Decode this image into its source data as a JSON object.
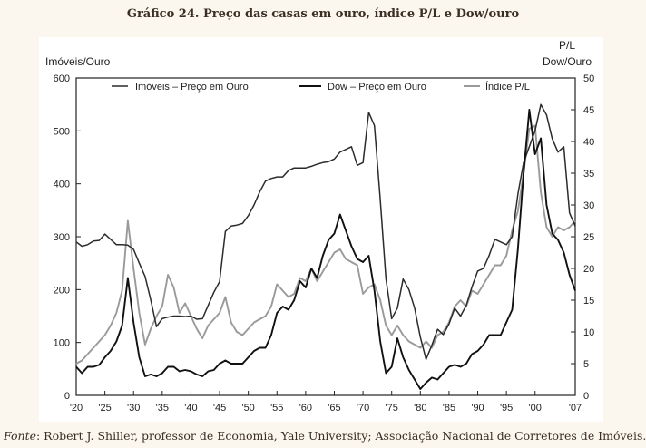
{
  "title": "Gráfico 24. Preço das casas em ouro, índice P/L e Dow/ouro",
  "source_label": "Fonte",
  "source_text": ": Robert J. Shiller, professor de Economia, Yale University; Associação Nacional de Corretores de Imóveis.",
  "chart_data": {
    "type": "line",
    "ylabel_left": "Imóveis/Ouro",
    "ylabel_right_line1": "P/L",
    "ylabel_right_line2": "Dow/Ouro",
    "xlim": [
      1920,
      2007
    ],
    "ylim_left": [
      0,
      600
    ],
    "ylim_right": [
      0,
      50
    ],
    "x_ticks": [
      1920,
      1925,
      1930,
      1935,
      1940,
      1945,
      1950,
      1955,
      1960,
      1965,
      1970,
      1975,
      1980,
      1985,
      1990,
      1995,
      2000,
      2007
    ],
    "x_tick_labels": [
      "'20",
      "'25",
      "'30",
      "'35",
      "'40",
      "'45",
      "'50",
      "'55",
      "'60",
      "'65",
      "'70",
      "'75",
      "'80",
      "'85",
      "'90",
      "'95",
      "'00",
      "'07"
    ],
    "y_left_ticks": [
      0,
      100,
      200,
      300,
      400,
      500,
      600
    ],
    "y_left_tick_labels": [
      "0",
      "100",
      "200",
      "300",
      "400",
      "500",
      "600"
    ],
    "y_right_ticks": [
      0,
      5,
      10,
      15,
      20,
      25,
      30,
      35,
      40,
      45,
      50
    ],
    "y_right_tick_labels": [
      "0",
      "5",
      "10",
      "15",
      "20",
      "25",
      "30",
      "35",
      "40",
      "45",
      "50"
    ],
    "grid": false,
    "legend_position": "top",
    "series": [
      {
        "name": "Imóveis – Preço em Ouro",
        "axis": "left",
        "color": "#2b2b2b",
        "points": [
          [
            1920,
            290
          ],
          [
            1921,
            282
          ],
          [
            1922,
            285
          ],
          [
            1923,
            292
          ],
          [
            1924,
            293
          ],
          [
            1925,
            305
          ],
          [
            1926,
            295
          ],
          [
            1927,
            285
          ],
          [
            1928,
            285
          ],
          [
            1929,
            284
          ],
          [
            1930,
            276
          ],
          [
            1931,
            250
          ],
          [
            1932,
            225
          ],
          [
            1933,
            180
          ],
          [
            1934,
            130
          ],
          [
            1935,
            145
          ],
          [
            1936,
            148
          ],
          [
            1937,
            150
          ],
          [
            1938,
            150
          ],
          [
            1939,
            149
          ],
          [
            1940,
            150
          ],
          [
            1941,
            144
          ],
          [
            1942,
            145
          ],
          [
            1943,
            170
          ],
          [
            1944,
            195
          ],
          [
            1945,
            215
          ],
          [
            1946,
            310
          ],
          [
            1947,
            320
          ],
          [
            1948,
            322
          ],
          [
            1949,
            325
          ],
          [
            1950,
            340
          ],
          [
            1951,
            360
          ],
          [
            1952,
            385
          ],
          [
            1953,
            405
          ],
          [
            1954,
            410
          ],
          [
            1955,
            413
          ],
          [
            1956,
            413
          ],
          [
            1957,
            425
          ],
          [
            1958,
            430
          ],
          [
            1959,
            430
          ],
          [
            1960,
            430
          ],
          [
            1961,
            433
          ],
          [
            1962,
            437
          ],
          [
            1963,
            440
          ],
          [
            1964,
            442
          ],
          [
            1965,
            447
          ],
          [
            1966,
            460
          ],
          [
            1967,
            465
          ],
          [
            1968,
            470
          ],
          [
            1969,
            435
          ],
          [
            1970,
            440
          ],
          [
            1971,
            535
          ],
          [
            1972,
            510
          ],
          [
            1973,
            370
          ],
          [
            1974,
            220
          ],
          [
            1975,
            145
          ],
          [
            1976,
            165
          ],
          [
            1977,
            220
          ],
          [
            1978,
            200
          ],
          [
            1979,
            165
          ],
          [
            1980,
            110
          ],
          [
            1981,
            68
          ],
          [
            1982,
            95
          ],
          [
            1983,
            125
          ],
          [
            1984,
            115
          ],
          [
            1985,
            135
          ],
          [
            1986,
            165
          ],
          [
            1987,
            150
          ],
          [
            1988,
            170
          ],
          [
            1989,
            205
          ],
          [
            1990,
            235
          ],
          [
            1991,
            240
          ],
          [
            1992,
            265
          ],
          [
            1993,
            295
          ],
          [
            1994,
            290
          ],
          [
            1995,
            285
          ],
          [
            1996,
            300
          ],
          [
            1997,
            380
          ],
          [
            1998,
            440
          ],
          [
            1999,
            470
          ],
          [
            2000,
            500
          ],
          [
            2001,
            550
          ],
          [
            2002,
            530
          ],
          [
            2003,
            485
          ],
          [
            2004,
            460
          ],
          [
            2005,
            470
          ],
          [
            2006,
            345
          ],
          [
            2007,
            320
          ]
        ]
      },
      {
        "name": "Dow – Preço em Ouro",
        "axis": "right",
        "color": "#111111",
        "points": [
          [
            1920,
            4.5
          ],
          [
            1921,
            3.5
          ],
          [
            1922,
            4.5
          ],
          [
            1923,
            4.5
          ],
          [
            1924,
            4.8
          ],
          [
            1925,
            6.0
          ],
          [
            1926,
            7.0
          ],
          [
            1927,
            8.5
          ],
          [
            1928,
            11.0
          ],
          [
            1929,
            18.5
          ],
          [
            1930,
            11.5
          ],
          [
            1931,
            6.0
          ],
          [
            1932,
            3.0
          ],
          [
            1933,
            3.3
          ],
          [
            1934,
            3.0
          ],
          [
            1935,
            3.5
          ],
          [
            1936,
            4.5
          ],
          [
            1937,
            4.5
          ],
          [
            1938,
            3.8
          ],
          [
            1939,
            4.0
          ],
          [
            1940,
            3.8
          ],
          [
            1941,
            3.3
          ],
          [
            1942,
            3.0
          ],
          [
            1943,
            3.8
          ],
          [
            1944,
            4.0
          ],
          [
            1945,
            5.0
          ],
          [
            1946,
            5.5
          ],
          [
            1947,
            5.0
          ],
          [
            1948,
            5.0
          ],
          [
            1949,
            5.0
          ],
          [
            1950,
            6.0
          ],
          [
            1951,
            7.0
          ],
          [
            1952,
            7.5
          ],
          [
            1953,
            7.5
          ],
          [
            1954,
            9.5
          ],
          [
            1955,
            13.0
          ],
          [
            1956,
            14.0
          ],
          [
            1957,
            13.5
          ],
          [
            1958,
            15.0
          ],
          [
            1959,
            18.0
          ],
          [
            1960,
            17.0
          ],
          [
            1961,
            20.0
          ],
          [
            1962,
            18.5
          ],
          [
            1963,
            22.0
          ],
          [
            1964,
            24.5
          ],
          [
            1965,
            25.5
          ],
          [
            1966,
            28.5
          ],
          [
            1967,
            26.0
          ],
          [
            1968,
            23.5
          ],
          [
            1969,
            21.5
          ],
          [
            1970,
            21.0
          ],
          [
            1971,
            22.0
          ],
          [
            1972,
            16.5
          ],
          [
            1973,
            8.5
          ],
          [
            1974,
            3.5
          ],
          [
            1975,
            4.5
          ],
          [
            1976,
            9.0
          ],
          [
            1977,
            6.0
          ],
          [
            1978,
            4.0
          ],
          [
            1979,
            2.5
          ],
          [
            1980,
            1.0
          ],
          [
            1981,
            2.0
          ],
          [
            1982,
            2.8
          ],
          [
            1983,
            2.5
          ],
          [
            1984,
            3.5
          ],
          [
            1985,
            4.5
          ],
          [
            1986,
            4.8
          ],
          [
            1987,
            4.5
          ],
          [
            1988,
            5.0
          ],
          [
            1989,
            6.5
          ],
          [
            1990,
            7.0
          ],
          [
            1991,
            8.0
          ],
          [
            1992,
            9.5
          ],
          [
            1993,
            9.5
          ],
          [
            1994,
            9.5
          ],
          [
            1995,
            11.5
          ],
          [
            1996,
            13.5
          ],
          [
            1997,
            23.0
          ],
          [
            1998,
            35.0
          ],
          [
            1999,
            45.0
          ],
          [
            2000,
            38.0
          ],
          [
            2001,
            40.5
          ],
          [
            2002,
            30.0
          ],
          [
            2003,
            25.5
          ],
          [
            2004,
            24.5
          ],
          [
            2005,
            22.5
          ],
          [
            2006,
            19.0
          ],
          [
            2007,
            16.5
          ]
        ]
      },
      {
        "name": "Índice P/L",
        "axis": "right",
        "color": "#9a9a9a",
        "points": [
          [
            1920,
            5.0
          ],
          [
            1921,
            5.5
          ],
          [
            1922,
            6.5
          ],
          [
            1923,
            7.5
          ],
          [
            1924,
            8.5
          ],
          [
            1925,
            9.5
          ],
          [
            1926,
            11.0
          ],
          [
            1927,
            13.0
          ],
          [
            1928,
            16.5
          ],
          [
            1929,
            27.5
          ],
          [
            1930,
            20.0
          ],
          [
            1931,
            13.0
          ],
          [
            1932,
            8.0
          ],
          [
            1933,
            10.5
          ],
          [
            1934,
            12.5
          ],
          [
            1935,
            14.0
          ],
          [
            1936,
            19.0
          ],
          [
            1937,
            17.0
          ],
          [
            1938,
            13.0
          ],
          [
            1939,
            14.5
          ],
          [
            1940,
            12.5
          ],
          [
            1941,
            10.5
          ],
          [
            1942,
            9.0
          ],
          [
            1943,
            11.0
          ],
          [
            1944,
            12.0
          ],
          [
            1945,
            13.0
          ],
          [
            1946,
            15.5
          ],
          [
            1947,
            11.5
          ],
          [
            1948,
            10.0
          ],
          [
            1949,
            9.5
          ],
          [
            1950,
            10.5
          ],
          [
            1951,
            11.5
          ],
          [
            1952,
            12.0
          ],
          [
            1953,
            12.5
          ],
          [
            1954,
            14.0
          ],
          [
            1955,
            17.5
          ],
          [
            1956,
            16.5
          ],
          [
            1957,
            15.5
          ],
          [
            1958,
            16.0
          ],
          [
            1959,
            18.5
          ],
          [
            1960,
            18.0
          ],
          [
            1961,
            20.0
          ],
          [
            1962,
            18.0
          ],
          [
            1963,
            19.5
          ],
          [
            1964,
            21.0
          ],
          [
            1965,
            22.5
          ],
          [
            1966,
            23.0
          ],
          [
            1967,
            21.5
          ],
          [
            1968,
            21.0
          ],
          [
            1969,
            20.5
          ],
          [
            1970,
            16.0
          ],
          [
            1971,
            17.0
          ],
          [
            1972,
            17.5
          ],
          [
            1973,
            15.0
          ],
          [
            1974,
            11.0
          ],
          [
            1975,
            9.5
          ],
          [
            1976,
            11.0
          ],
          [
            1977,
            9.5
          ],
          [
            1978,
            8.5
          ],
          [
            1979,
            8.0
          ],
          [
            1980,
            7.5
          ],
          [
            1981,
            8.5
          ],
          [
            1982,
            7.5
          ],
          [
            1983,
            9.5
          ],
          [
            1984,
            10.0
          ],
          [
            1985,
            11.5
          ],
          [
            1986,
            14.0
          ],
          [
            1987,
            15.0
          ],
          [
            1988,
            14.0
          ],
          [
            1989,
            16.5
          ],
          [
            1990,
            16.0
          ],
          [
            1991,
            17.5
          ],
          [
            1992,
            19.0
          ],
          [
            1993,
            20.5
          ],
          [
            1994,
            20.5
          ],
          [
            1995,
            22.0
          ],
          [
            1996,
            26.0
          ],
          [
            1997,
            29.0
          ],
          [
            1998,
            35.0
          ],
          [
            1999,
            42.0
          ],
          [
            2000,
            42.5
          ],
          [
            2001,
            32.0
          ],
          [
            2002,
            26.5
          ],
          [
            2003,
            25.0
          ],
          [
            2004,
            26.5
          ],
          [
            2005,
            26.0
          ],
          [
            2006,
            26.5
          ],
          [
            2007,
            27.5
          ]
        ]
      }
    ]
  }
}
